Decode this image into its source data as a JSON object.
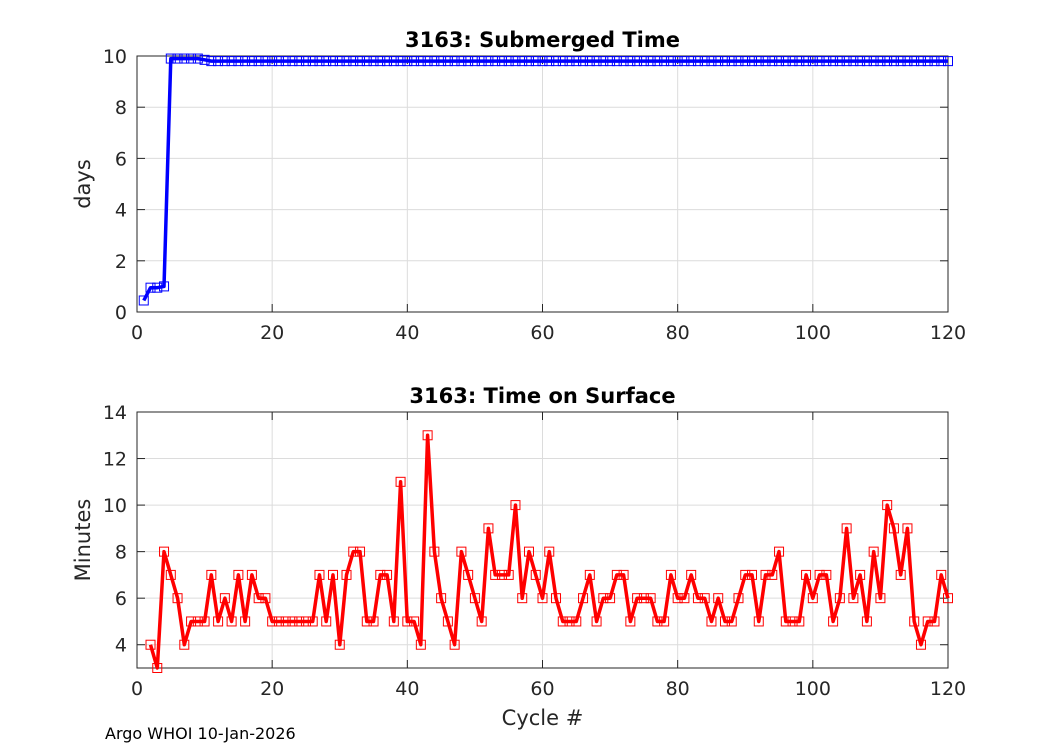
{
  "footer": "Argo WHOI 10-Jan-2026",
  "chart_data": [
    {
      "type": "line",
      "title": "3163: Submerged Time",
      "xlabel": "",
      "ylabel": "days",
      "xlim": [
        0,
        120
      ],
      "ylim": [
        0,
        10
      ],
      "xticks": [
        0,
        20,
        40,
        60,
        80,
        100,
        120
      ],
      "yticks": [
        0,
        2,
        4,
        6,
        8,
        10
      ],
      "grid": true,
      "marker": "square",
      "color": "#0000ff",
      "x": [
        1,
        2,
        3,
        4,
        5,
        6,
        7,
        8,
        9,
        10,
        11,
        12,
        13,
        14,
        15,
        16,
        17,
        18,
        19,
        20,
        21,
        22,
        23,
        24,
        25,
        26,
        27,
        28,
        29,
        30,
        31,
        32,
        33,
        34,
        35,
        36,
        37,
        38,
        39,
        40,
        41,
        42,
        43,
        44,
        45,
        46,
        47,
        48,
        49,
        50,
        51,
        52,
        53,
        54,
        55,
        56,
        57,
        58,
        59,
        60,
        61,
        62,
        63,
        64,
        65,
        66,
        67,
        68,
        69,
        70,
        71,
        72,
        73,
        74,
        75,
        76,
        77,
        78,
        79,
        80,
        81,
        82,
        83,
        84,
        85,
        86,
        87,
        88,
        89,
        90,
        91,
        92,
        93,
        94,
        95,
        96,
        97,
        98,
        99,
        100,
        101,
        102,
        103,
        104,
        105,
        106,
        107,
        108,
        109,
        110,
        111,
        112,
        113,
        114,
        115,
        116,
        117,
        118,
        119,
        120
      ],
      "y": [
        0.45,
        0.95,
        0.95,
        1.0,
        9.9,
        9.9,
        9.9,
        9.9,
        9.9,
        9.85,
        9.8,
        9.8,
        9.8,
        9.8,
        9.8,
        9.8,
        9.8,
        9.8,
        9.8,
        9.8,
        9.8,
        9.8,
        9.8,
        9.8,
        9.8,
        9.8,
        9.8,
        9.8,
        9.8,
        9.8,
        9.8,
        9.8,
        9.8,
        9.8,
        9.8,
        9.8,
        9.8,
        9.8,
        9.8,
        9.8,
        9.8,
        9.8,
        9.8,
        9.8,
        9.8,
        9.8,
        9.8,
        9.8,
        9.8,
        9.8,
        9.8,
        9.8,
        9.8,
        9.8,
        9.8,
        9.8,
        9.8,
        9.8,
        9.8,
        9.8,
        9.8,
        9.8,
        9.8,
        9.8,
        9.8,
        9.8,
        9.8,
        9.8,
        9.8,
        9.8,
        9.8,
        9.8,
        9.8,
        9.8,
        9.8,
        9.8,
        9.8,
        9.8,
        9.8,
        9.8,
        9.8,
        9.8,
        9.8,
        9.8,
        9.8,
        9.8,
        9.8,
        9.8,
        9.8,
        9.8,
        9.8,
        9.8,
        9.8,
        9.8,
        9.8,
        9.8,
        9.8,
        9.8,
        9.8,
        9.8,
        9.8,
        9.8,
        9.8,
        9.8,
        9.8,
        9.8,
        9.8,
        9.8,
        9.8,
        9.8,
        9.8,
        9.8,
        9.8,
        9.8,
        9.8,
        9.8,
        9.8,
        9.8,
        9.8,
        9.8
      ]
    },
    {
      "type": "line",
      "title": "3163: Time on Surface",
      "xlabel": "Cycle #",
      "ylabel": "Minutes",
      "xlim": [
        0,
        120
      ],
      "ylim": [
        3,
        14
      ],
      "xticks": [
        0,
        20,
        40,
        60,
        80,
        100,
        120
      ],
      "yticks": [
        4,
        6,
        8,
        10,
        12,
        14
      ],
      "grid": true,
      "marker": "square",
      "color": "#ff0000",
      "x": [
        2,
        3,
        4,
        5,
        6,
        7,
        8,
        9,
        10,
        11,
        12,
        13,
        14,
        15,
        16,
        17,
        18,
        19,
        20,
        21,
        22,
        23,
        24,
        25,
        26,
        27,
        28,
        29,
        30,
        31,
        32,
        33,
        34,
        35,
        36,
        37,
        38,
        39,
        40,
        41,
        42,
        43,
        44,
        45,
        46,
        47,
        48,
        49,
        50,
        51,
        52,
        53,
        54,
        55,
        56,
        57,
        58,
        59,
        60,
        61,
        62,
        63,
        64,
        65,
        66,
        67,
        68,
        69,
        70,
        71,
        72,
        73,
        74,
        75,
        76,
        77,
        78,
        79,
        80,
        81,
        82,
        83,
        84,
        85,
        86,
        87,
        88,
        89,
        90,
        91,
        92,
        93,
        94,
        95,
        96,
        97,
        98,
        99,
        100,
        101,
        102,
        103,
        104,
        105,
        106,
        107,
        108,
        109,
        110,
        111,
        112,
        113,
        114,
        115,
        116,
        117,
        118,
        119,
        120
      ],
      "y": [
        4,
        3,
        8,
        7,
        6,
        4,
        5,
        5,
        5,
        7,
        5,
        6,
        5,
        7,
        5,
        7,
        6,
        6,
        5,
        5,
        5,
        5,
        5,
        5,
        5,
        7,
        5,
        7,
        4,
        7,
        8,
        8,
        5,
        5,
        7,
        7,
        5,
        11,
        5,
        5,
        4,
        13,
        8,
        6,
        5,
        4,
        8,
        7,
        6,
        5,
        9,
        7,
        7,
        7,
        10,
        6,
        8,
        7,
        6,
        8,
        6,
        5,
        5,
        5,
        6,
        7,
        5,
        6,
        6,
        7,
        7,
        5,
        6,
        6,
        6,
        5,
        5,
        7,
        6,
        6,
        7,
        6,
        6,
        5,
        6,
        5,
        5,
        6,
        7,
        7,
        5,
        7,
        7,
        8,
        5,
        5,
        5,
        7,
        6,
        7,
        7,
        5,
        6,
        9,
        6,
        7,
        5,
        8,
        6,
        10,
        9,
        7,
        9,
        5,
        4,
        5,
        5,
        7,
        6
      ]
    }
  ]
}
